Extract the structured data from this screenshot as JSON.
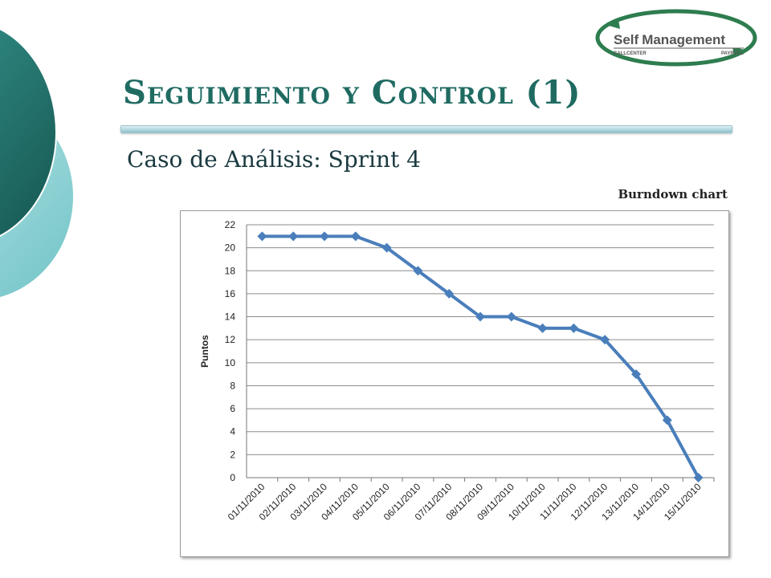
{
  "slide": {
    "title": "Seguimiento y Control (1)",
    "subtitle": "Caso de Análisis: Sprint 4",
    "chart_caption": "Burndown chart"
  },
  "logo": {
    "text_self": "Self",
    "text_management": "Management",
    "text_left": "CALLCENTER",
    "text_right": "PAYROLL"
  },
  "colors": {
    "title": "#1f6b62",
    "series_line": "#4a7ebb",
    "grid": "#8c8c8c",
    "deco_dark": "#1f6e66",
    "deco_light": "#8fd3d6"
  },
  "chart_data": {
    "type": "line",
    "title": "",
    "xlabel": "",
    "ylabel": "Puntos",
    "ylim": [
      0,
      22
    ],
    "yticks": [
      0,
      2,
      4,
      6,
      8,
      10,
      12,
      14,
      16,
      18,
      20,
      22
    ],
    "categories": [
      "01/11/2010",
      "02/11/2010",
      "03/11/2010",
      "04/11/2010",
      "05/11/2010",
      "06/11/2010",
      "07/11/2010",
      "08/11/2010",
      "09/11/2010",
      "10/11/2010",
      "11/11/2010",
      "12/11/2010",
      "13/11/2010",
      "14/11/2010",
      "15/11/2010"
    ],
    "series": [
      {
        "values": [
          21,
          21,
          21,
          21,
          20,
          18,
          16,
          14,
          14,
          13,
          13,
          12,
          9,
          5,
          0
        ],
        "marker": "diamond"
      }
    ],
    "grid": true,
    "legend": "none"
  }
}
